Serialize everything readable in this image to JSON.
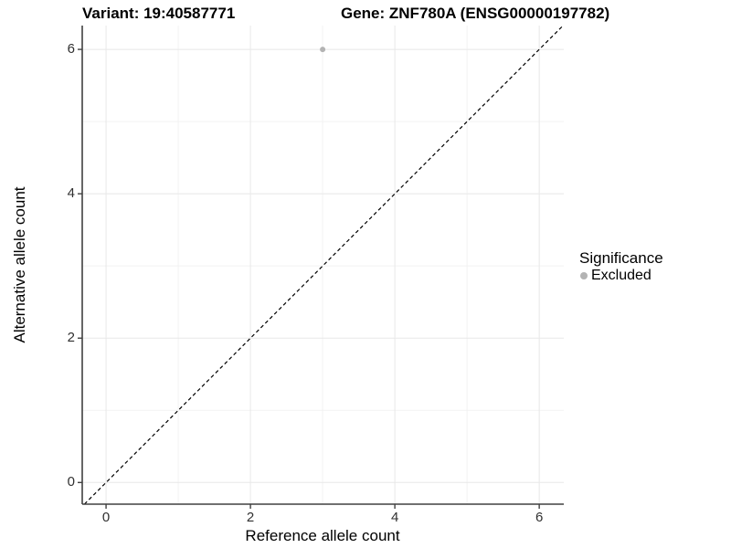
{
  "chart_data": {
    "type": "scatter",
    "title_left": "Variant: 19:40587771",
    "title_right": "Gene: ZNF780A (ENSG00000197782)",
    "xlabel": "Reference allele count",
    "ylabel": "Alternative allele count",
    "xlim": [
      -0.33,
      6.34
    ],
    "ylim": [
      -0.3,
      6.33
    ],
    "xticks": [
      "0",
      "2",
      "4",
      "6"
    ],
    "yticks": [
      "0",
      "2",
      "4",
      "6"
    ],
    "xtick_values": [
      0,
      2,
      4,
      6
    ],
    "ytick_values": [
      0,
      2,
      4,
      6
    ],
    "xminor_values": [
      1,
      3,
      5
    ],
    "yminor_values": [
      1,
      3,
      5
    ],
    "grid": "major and minor, light grey on white",
    "points": [
      {
        "x": 3,
        "y": 6,
        "series": "Excluded"
      }
    ],
    "reference_line": {
      "equation": "y = x",
      "style": "dashed",
      "color": "#000000"
    },
    "legend": {
      "title": "Significance",
      "position": "right",
      "entries": [
        {
          "label": "Excluded",
          "color": "#b3b3b3"
        }
      ]
    }
  },
  "colors": {
    "background": "#ffffff",
    "grid_major": "#e8e8e8",
    "grid_minor": "#f2f2f2",
    "axis_line": "#404040",
    "tick_text": "#303030",
    "point": "#b3b3b3"
  }
}
